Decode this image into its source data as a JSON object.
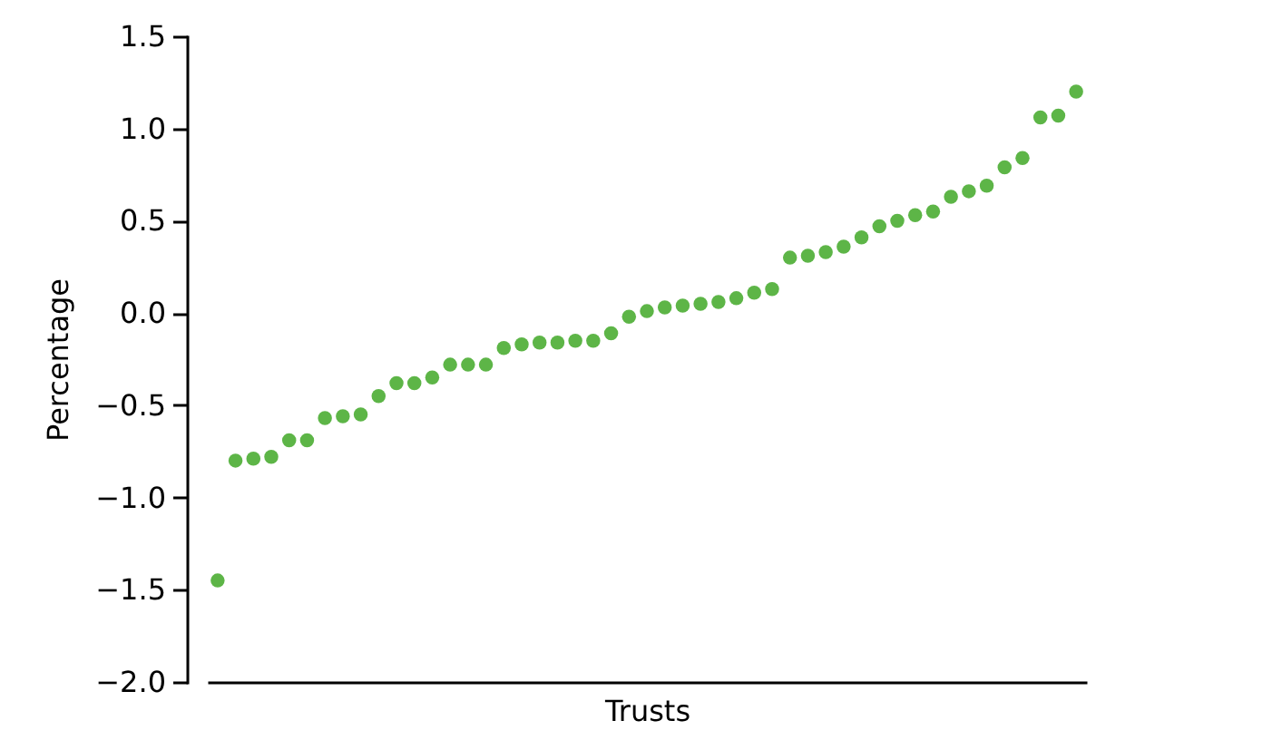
{
  "chart_data": {
    "type": "scatter",
    "xlabel": "Trusts",
    "ylabel": "Percentage",
    "categories": [
      null,
      null,
      null,
      null,
      null,
      null,
      null,
      null,
      null,
      null,
      null,
      null,
      null,
      null,
      null,
      null,
      null,
      null,
      null,
      null,
      null,
      null,
      null,
      null,
      null,
      null,
      null,
      null,
      null,
      null,
      null,
      null,
      null,
      null,
      null,
      null,
      null,
      null,
      null,
      null,
      null,
      null,
      null,
      null,
      null,
      null,
      null,
      null,
      null
    ],
    "series": [
      {
        "color": "#5db547",
        "values": [
          -1.45,
          -0.8,
          -0.79,
          -0.78,
          -0.69,
          -0.69,
          -0.57,
          -0.56,
          -0.55,
          -0.45,
          -0.38,
          -0.38,
          -0.35,
          -0.28,
          -0.28,
          -0.28,
          -0.19,
          -0.17,
          -0.16,
          -0.16,
          -0.15,
          -0.15,
          -0.11,
          -0.02,
          0.01,
          0.03,
          0.04,
          0.05,
          0.06,
          0.08,
          0.11,
          0.13,
          0.3,
          0.31,
          0.33,
          0.36,
          0.41,
          0.47,
          0.5,
          0.53,
          0.55,
          0.63,
          0.66,
          0.69,
          0.79,
          0.84,
          1.06,
          1.07,
          1.2
        ]
      }
    ],
    "ylim": [
      -2.0,
      1.5
    ],
    "yticks": [
      {
        "value": -2,
        "label": "−2.0"
      },
      {
        "value": -1.5,
        "label": "−1.5"
      },
      {
        "value": -1,
        "label": "−1.0"
      },
      {
        "value": -0.5,
        "label": "−0.5"
      },
      {
        "value": 0,
        "label": "0.0"
      },
      {
        "value": 0.5,
        "label": "0.5"
      },
      {
        "value": 1,
        "label": "1.0"
      },
      {
        "value": 1.5,
        "label": "1.5"
      }
    ],
    "marker": "circle"
  }
}
